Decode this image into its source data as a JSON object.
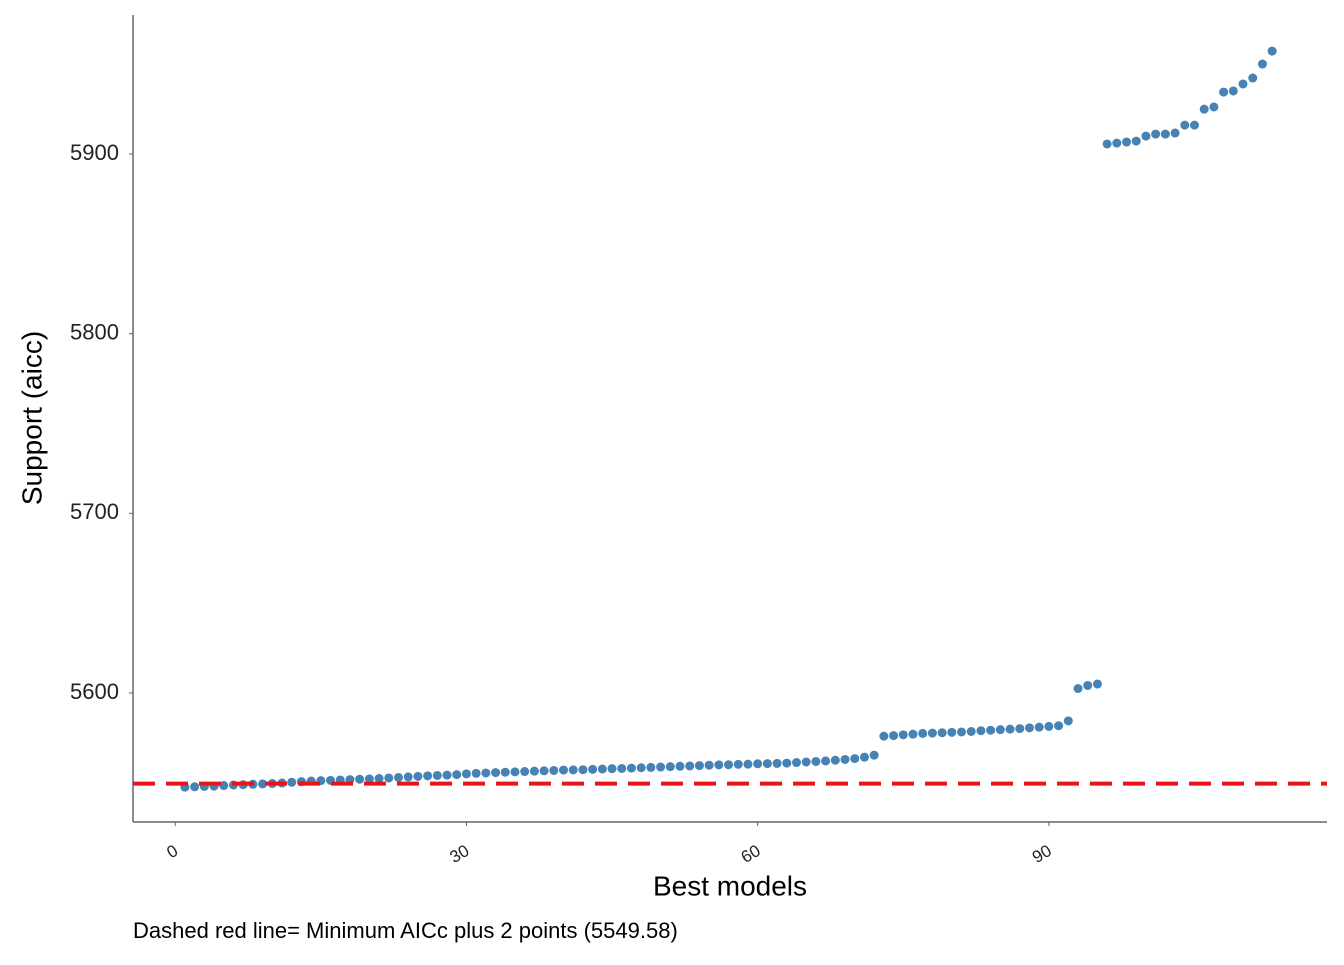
{
  "chart_data": {
    "type": "scatter",
    "x_label": "Best models",
    "y_label": "Support (aicc)",
    "caption": "Dashed red line= Minimum AICc plus 2 points (5549.58)",
    "color": "#4682b4",
    "reference_line": {
      "value": 5549.58,
      "color": "#e8141a"
    },
    "xlim": [
      -4.35,
      118.65
    ],
    "ylim": [
      5528.2,
      5977.4
    ],
    "xticks": [
      0,
      30,
      60,
      90
    ],
    "yticks": [
      5600,
      5700,
      5800,
      5900
    ],
    "series": [
      {
        "name": "aicc",
        "x": [
          1,
          2,
          3,
          4,
          5,
          6,
          7,
          8,
          9,
          10,
          11,
          12,
          13,
          14,
          15,
          16,
          17,
          18,
          19,
          20,
          21,
          22,
          23,
          24,
          25,
          26,
          27,
          28,
          29,
          30,
          31,
          32,
          33,
          34,
          35,
          36,
          37,
          38,
          39,
          40,
          41,
          42,
          43,
          44,
          45,
          46,
          47,
          48,
          49,
          50,
          51,
          52,
          53,
          54,
          55,
          56,
          57,
          58,
          59,
          60,
          61,
          62,
          63,
          64,
          65,
          66,
          67,
          68,
          69,
          70,
          71,
          72,
          73,
          74,
          75,
          76,
          77,
          78,
          79,
          80,
          81,
          82,
          83,
          84,
          85,
          86,
          87,
          88,
          89,
          90,
          91,
          92,
          93,
          94,
          95,
          96,
          97,
          98,
          99,
          100,
          101,
          102,
          103,
          104,
          105,
          106,
          107,
          108,
          109,
          110,
          111,
          112,
          113
        ],
        "values": [
          5547.6,
          5547.8,
          5548.0,
          5548.2,
          5548.5,
          5548.8,
          5549.0,
          5549.2,
          5549.4,
          5549.6,
          5549.9,
          5550.3,
          5550.7,
          5551.0,
          5551.2,
          5551.4,
          5551.6,
          5551.8,
          5552.0,
          5552.2,
          5552.4,
          5552.7,
          5553.0,
          5553.3,
          5553.6,
          5553.9,
          5554.1,
          5554.3,
          5554.6,
          5555.0,
          5555.3,
          5555.5,
          5555.7,
          5555.9,
          5556.1,
          5556.3,
          5556.5,
          5556.7,
          5556.9,
          5557.1,
          5557.2,
          5557.3,
          5557.5,
          5557.7,
          5557.9,
          5558.0,
          5558.2,
          5558.4,
          5558.6,
          5558.8,
          5559.0,
          5559.2,
          5559.4,
          5559.6,
          5559.8,
          5560.0,
          5560.1,
          5560.3,
          5560.4,
          5560.6,
          5560.7,
          5560.8,
          5561.0,
          5561.3,
          5561.6,
          5561.9,
          5562.2,
          5562.6,
          5563.0,
          5563.5,
          5564.3,
          5565.4,
          5576.0,
          5576.3,
          5576.7,
          5577.1,
          5577.5,
          5577.7,
          5577.9,
          5578.1,
          5578.3,
          5578.6,
          5579.0,
          5579.3,
          5579.6,
          5579.9,
          5580.2,
          5580.6,
          5581.0,
          5581.4,
          5581.8,
          5584.5,
          5602.5,
          5604.2,
          5605.0,
          5905.6,
          5906.1,
          5906.7,
          5907.2,
          5910.0,
          5911.1,
          5911.1,
          5911.7,
          5916.1,
          5916.1,
          5925.0,
          5926.2,
          5934.5,
          5935.1,
          5939.0,
          5942.3,
          5950.1,
          5957.3
        ]
      }
    ]
  }
}
